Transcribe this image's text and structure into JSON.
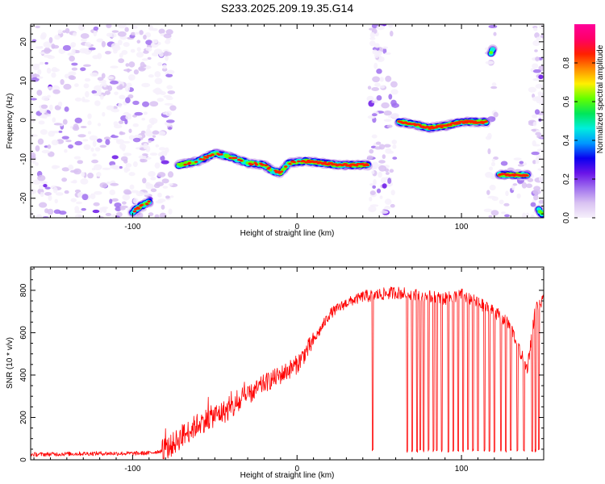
{
  "title": "S233.2025.209.19.35.G14",
  "chart_data": [
    {
      "type": "heatmap",
      "xlabel": "Height of straight line (km)",
      "ylabel": "Frequency (Hz)",
      "xlim": [
        -162,
        150
      ],
      "ylim": [
        -25,
        24.5
      ],
      "x_ticks": [
        -100,
        0,
        100
      ],
      "x_tick_labels": [
        "-100",
        "0",
        "100"
      ],
      "y_ticks": [
        -20,
        -10,
        0,
        10,
        20
      ],
      "y_tick_labels": [
        "-20",
        "-10",
        "0",
        "10",
        "20"
      ],
      "colorbar": {
        "label": "Normalized spectral amplitude",
        "range": [
          0,
          1
        ],
        "ticks": [
          0,
          0.2,
          0.4,
          0.6,
          0.8
        ],
        "tick_labels": [
          "0.0",
          "0.2",
          "0.4",
          "0.6",
          "0.8"
        ],
        "colors": [
          "#f6f0fb",
          "#d9c2f2",
          "#a070ee",
          "#6a14e8",
          "#0a00f0",
          "#0096ff",
          "#00eedd",
          "#00e65a",
          "#63ff00",
          "#fff000",
          "#ff8c00",
          "#ff2000",
          "#ff0066",
          "#ff0099"
        ]
      },
      "signal_tracks": [
        {
          "x": [
            -72,
            -60,
            -50,
            -40,
            -30,
            -20,
            -15,
            -10,
            -5,
            5,
            15,
            25,
            35,
            43
          ],
          "freq": [
            -11.5,
            -10.5,
            -8.5,
            -9.5,
            -11,
            -11.5,
            -13,
            -13.5,
            -11,
            -10.5,
            -11,
            -11.5,
            -11.5,
            -11.5
          ]
        },
        {
          "x": [
            -100,
            -95,
            -90
          ],
          "freq": [
            -23.5,
            -22,
            -21
          ]
        },
        {
          "x": [
            62,
            70,
            80,
            90,
            100,
            107,
            115
          ],
          "freq": [
            -0.5,
            -1,
            -2,
            -1.5,
            -0.5,
            -0.5,
            -0.5
          ]
        },
        {
          "x": [
            123,
            130,
            140
          ],
          "freq": [
            -14,
            -14,
            -14
          ]
        },
        {
          "x": [
            118,
            119
          ],
          "freq": [
            17,
            18
          ]
        },
        {
          "x": [
            147,
            149
          ],
          "freq": [
            -23,
            -24
          ]
        }
      ]
    },
    {
      "type": "line",
      "xlabel": "Height of straight line (km)",
      "ylabel": "SNR (10 * v/v)",
      "xlim": [
        -162,
        150
      ],
      "ylim": [
        0,
        910
      ],
      "x_ticks": [
        -100,
        0,
        100
      ],
      "x_tick_labels": [
        "-100",
        "0",
        "100"
      ],
      "y_ticks": [
        0,
        200,
        400,
        600,
        800
      ],
      "y_tick_labels": [
        "0",
        "200",
        "400",
        "600",
        "800"
      ],
      "line_color": "#ff0000",
      "x": [
        -162,
        -140,
        -120,
        -100,
        -90,
        -80,
        -70,
        -60,
        -50,
        -40,
        -30,
        -20,
        -10,
        0,
        10,
        20,
        30,
        40,
        50,
        60,
        70,
        80,
        90,
        100,
        110,
        120,
        130,
        135,
        140,
        145,
        150
      ],
      "y": [
        25,
        28,
        30,
        30,
        32,
        45,
        110,
        170,
        210,
        240,
        300,
        360,
        400,
        450,
        560,
        690,
        740,
        770,
        780,
        790,
        780,
        770,
        760,
        780,
        740,
        700,
        630,
        520,
        430,
        720,
        750
      ],
      "dropouts": [
        46,
        67,
        70,
        73,
        75,
        77,
        80,
        83,
        85,
        88,
        92,
        95,
        98,
        101,
        104,
        107,
        110,
        114,
        117,
        120,
        124,
        127,
        130,
        134,
        138,
        143,
        145,
        147
      ]
    }
  ]
}
